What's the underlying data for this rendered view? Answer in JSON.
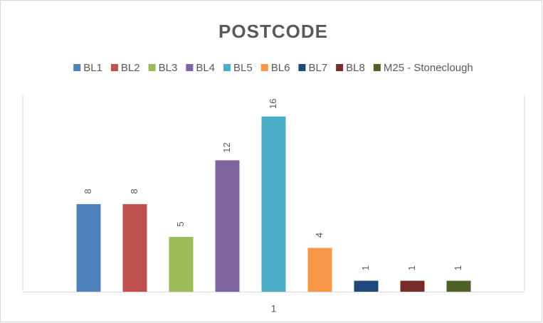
{
  "chart_data": {
    "type": "bar",
    "title": "POSTCODE",
    "categories": [
      "1"
    ],
    "series": [
      {
        "name": "BL1",
        "color": "#4f81bd",
        "values": [
          8
        ]
      },
      {
        "name": "BL2",
        "color": "#c0504d",
        "values": [
          8
        ]
      },
      {
        "name": "BL3",
        "color": "#9bbb59",
        "values": [
          5
        ]
      },
      {
        "name": "BL4",
        "color": "#8064a2",
        "values": [
          12
        ]
      },
      {
        "name": "BL5",
        "color": "#4bacc6",
        "values": [
          16
        ]
      },
      {
        "name": "BL6",
        "color": "#f79646",
        "values": [
          4
        ]
      },
      {
        "name": "BL7",
        "color": "#1f497d",
        "values": [
          1
        ]
      },
      {
        "name": "BL8",
        "color": "#772c2a",
        "values": [
          1
        ]
      },
      {
        "name": "M25 - Stoneclough",
        "color": "#4f6228",
        "values": [
          1
        ]
      }
    ],
    "ylim": [
      0,
      18
    ],
    "legend": "top"
  }
}
